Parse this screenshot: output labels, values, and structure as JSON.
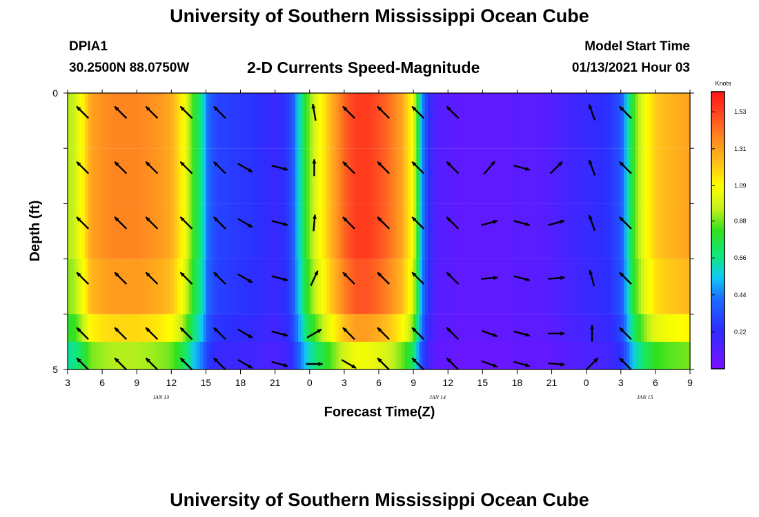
{
  "header": {
    "title": "University of Southern Mississippi Ocean Cube",
    "station": "DPIA1",
    "coords": "30.2500N 88.0750W",
    "subtitle": "2-D Currents Speed-Magnitude",
    "model_label": "Model Start Time",
    "model_time": "01/13/2021 Hour 03",
    "footer_title": "University of Southern Mississippi Ocean Cube"
  },
  "chart_data": {
    "type": "heatmap",
    "title": "2-D Currents Speed-Magnitude",
    "xlabel": "Forecast Time(Z)",
    "ylabel": "Depth (ft)",
    "x_hours_from_start": [
      0,
      54
    ],
    "x_tick_labels": [
      "3",
      "6",
      "9",
      "12",
      "15",
      "18",
      "21",
      "0",
      "3",
      "6",
      "9",
      "12",
      "15",
      "18",
      "21",
      "0",
      "3",
      "6",
      "9"
    ],
    "date_labels": [
      {
        "label": "JAN 13",
        "hour": 9
      },
      {
        "label": "JAN 14",
        "hour": 33
      },
      {
        "label": "JAN 15",
        "hour": 51
      }
    ],
    "y_range": [
      0,
      5
    ],
    "y_tick_labels": [
      "0",
      "5"
    ],
    "depth_layers": 5,
    "depth_layer_values_ft": [
      0.5,
      1.5,
      2.5,
      3.5,
      4.5,
      5.0
    ],
    "colorbar": {
      "unit": "Knots",
      "range": [
        0.0,
        1.65
      ],
      "tick_labels": [
        "0.22",
        "0.44",
        "0.66",
        "0.88",
        "1.09",
        "1.31",
        "1.53"
      ]
    },
    "speed_profile": {
      "hours": [
        0,
        0.5,
        1,
        1.5,
        2,
        3,
        4,
        5,
        6,
        7,
        8,
        9,
        10,
        11,
        11.8,
        12,
        12.5,
        13,
        14,
        15,
        16,
        17,
        18,
        19,
        19.5,
        20,
        20.5,
        21,
        22,
        23,
        24,
        25,
        26,
        27,
        28,
        29,
        30,
        30.5,
        31,
        31.5,
        32,
        33,
        34,
        35,
        36,
        37,
        38,
        39,
        40,
        41,
        42,
        43,
        44,
        45,
        46,
        47,
        48,
        48.5,
        49,
        50,
        51,
        52,
        53,
        54
      ],
      "surface_speed": [
        0.95,
        0.95,
        1.05,
        1.15,
        1.3,
        1.35,
        1.38,
        1.38,
        1.38,
        1.36,
        1.33,
        1.28,
        1.1,
        0.8,
        0.6,
        0.45,
        0.35,
        0.3,
        0.28,
        0.26,
        0.25,
        0.22,
        0.2,
        0.25,
        0.35,
        0.55,
        0.75,
        0.9,
        1.1,
        1.28,
        1.45,
        1.55,
        1.55,
        1.5,
        1.42,
        1.3,
        1.05,
        0.65,
        0.35,
        0.2,
        0.12,
        0.1,
        0.08,
        0.08,
        0.08,
        0.08,
        0.08,
        0.1,
        0.1,
        0.1,
        0.12,
        0.15,
        0.18,
        0.2,
        0.22,
        0.25,
        0.35,
        0.55,
        0.8,
        1.05,
        1.2,
        1.25,
        1.28,
        1.3
      ],
      "depth_factors": [
        1.0,
        1.0,
        1.0,
        0.96,
        0.85,
        0.68
      ]
    },
    "current_vectors": {
      "columns": [
        {
          "hour": 0.7,
          "angles": [
            315,
            315,
            315,
            315,
            315,
            315
          ]
        },
        {
          "hour": 4.0,
          "angles": [
            315,
            315,
            315,
            315,
            315,
            315
          ]
        },
        {
          "hour": 6.7,
          "angles": [
            315,
            315,
            315,
            315,
            315,
            315
          ]
        },
        {
          "hour": 9.7,
          "angles": [
            315,
            315,
            315,
            315,
            315,
            315
          ]
        },
        {
          "hour": 12.6,
          "angles": [
            315,
            315,
            315,
            315,
            315,
            315
          ]
        },
        {
          "hour": 14.8,
          "angles": [
            null,
            120,
            120,
            120,
            120,
            120
          ]
        },
        {
          "hour": 17.8,
          "angles": [
            null,
            105,
            105,
            105,
            105,
            105
          ]
        },
        {
          "hour": 20.8,
          "angles": [
            350,
            0,
            5,
            25,
            60,
            90
          ]
        },
        {
          "hour": 23.8,
          "angles": [
            315,
            315,
            315,
            315,
            315,
            120
          ]
        },
        {
          "hour": 26.8,
          "angles": [
            315,
            315,
            315,
            315,
            315,
            315
          ]
        },
        {
          "hour": 29.8,
          "angles": [
            315,
            315,
            315,
            315,
            315,
            315
          ]
        },
        {
          "hour": 32.8,
          "angles": [
            315,
            315,
            315,
            315,
            315,
            315
          ]
        },
        {
          "hour": 36.0,
          "angles": [
            null,
            40,
            75,
            85,
            110,
            110
          ]
        },
        {
          "hour": 38.8,
          "angles": [
            null,
            105,
            105,
            105,
            105,
            105
          ]
        },
        {
          "hour": 41.8,
          "angles": [
            null,
            45,
            75,
            85,
            90,
            95
          ]
        },
        {
          "hour": 44.9,
          "angles": [
            340,
            340,
            340,
            345,
            0,
            45
          ]
        },
        {
          "hour": 47.8,
          "angles": [
            315,
            315,
            315,
            315,
            315,
            315
          ]
        }
      ]
    }
  }
}
